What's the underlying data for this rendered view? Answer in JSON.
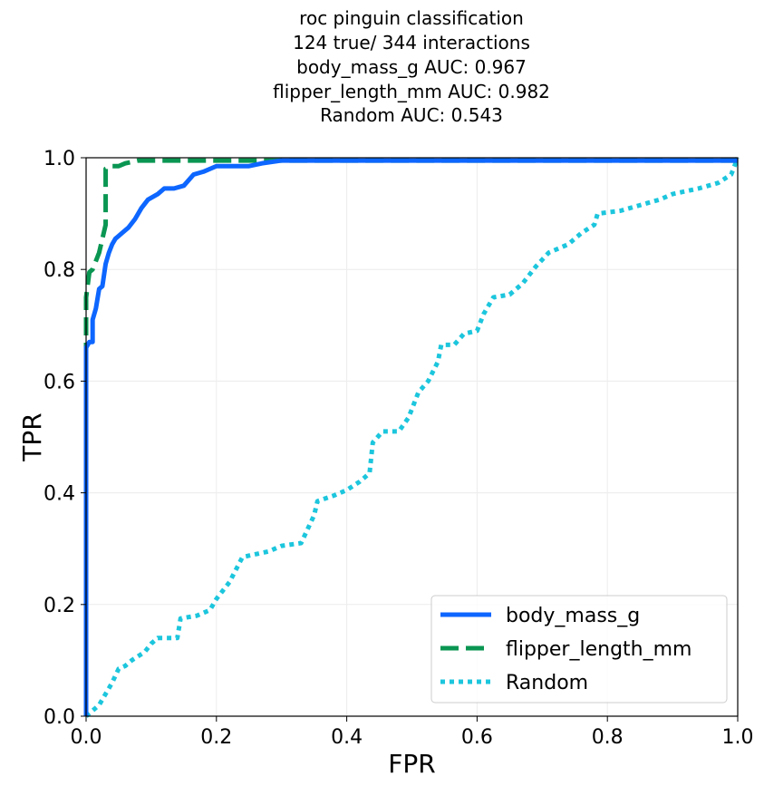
{
  "chart_data": {
    "type": "line",
    "title_lines": [
      "roc pinguin classification",
      "124 true/ 344 interactions",
      "body_mass_g AUC: 0.967",
      "flipper_length_mm AUC: 0.982",
      "Random AUC: 0.543"
    ],
    "xlabel": "FPR",
    "ylabel": "TPR",
    "xlim": [
      0,
      1
    ],
    "ylim": [
      0,
      1
    ],
    "xticks": [
      "0.0",
      "0.2",
      "0.4",
      "0.6",
      "0.8",
      "1.0"
    ],
    "yticks": [
      "0.0",
      "0.2",
      "0.4",
      "0.6",
      "0.8",
      "1.0"
    ],
    "grid": true,
    "legend_position": "lower-right",
    "series": [
      {
        "name": "body_mass_g",
        "color": "#0d66ff",
        "style": "solid",
        "points": [
          [
            0,
            0
          ],
          [
            0,
            0.66
          ],
          [
            0.005,
            0.67
          ],
          [
            0.01,
            0.67
          ],
          [
            0.01,
            0.71
          ],
          [
            0.015,
            0.73
          ],
          [
            0.02,
            0.765
          ],
          [
            0.025,
            0.77
          ],
          [
            0.03,
            0.81
          ],
          [
            0.035,
            0.83
          ],
          [
            0.04,
            0.845
          ],
          [
            0.045,
            0.855
          ],
          [
            0.05,
            0.86
          ],
          [
            0.055,
            0.865
          ],
          [
            0.065,
            0.875
          ],
          [
            0.075,
            0.89
          ],
          [
            0.085,
            0.91
          ],
          [
            0.095,
            0.925
          ],
          [
            0.11,
            0.935
          ],
          [
            0.12,
            0.945
          ],
          [
            0.135,
            0.945
          ],
          [
            0.15,
            0.95
          ],
          [
            0.165,
            0.97
          ],
          [
            0.18,
            0.975
          ],
          [
            0.2,
            0.985
          ],
          [
            0.25,
            0.985
          ],
          [
            0.27,
            0.99
          ],
          [
            0.3,
            0.995
          ],
          [
            0.5,
            0.995
          ],
          [
            1.0,
            0.995
          ]
        ]
      },
      {
        "name": "flipper_length_mm",
        "color": "#0a9652",
        "style": "dashed",
        "points": [
          [
            0,
            0
          ],
          [
            0,
            0.75
          ],
          [
            0.005,
            0.795
          ],
          [
            0.01,
            0.8
          ],
          [
            0.02,
            0.83
          ],
          [
            0.025,
            0.855
          ],
          [
            0.03,
            0.88
          ],
          [
            0.03,
            0.98
          ],
          [
            0.04,
            0.985
          ],
          [
            0.05,
            0.985
          ],
          [
            0.06,
            0.99
          ],
          [
            0.08,
            0.995
          ],
          [
            0.3,
            0.995
          ],
          [
            1.0,
            0.995
          ]
        ]
      },
      {
        "name": "Random",
        "color": "#1cc6dd",
        "style": "dotted",
        "points": [
          [
            0,
            0
          ],
          [
            0.01,
            0.01
          ],
          [
            0.02,
            0.02
          ],
          [
            0.03,
            0.04
          ],
          [
            0.04,
            0.06
          ],
          [
            0.05,
            0.085
          ],
          [
            0.06,
            0.09
          ],
          [
            0.07,
            0.1
          ],
          [
            0.09,
            0.115
          ],
          [
            0.1,
            0.13
          ],
          [
            0.11,
            0.14
          ],
          [
            0.14,
            0.14
          ],
          [
            0.145,
            0.175
          ],
          [
            0.17,
            0.18
          ],
          [
            0.19,
            0.19
          ],
          [
            0.2,
            0.21
          ],
          [
            0.22,
            0.24
          ],
          [
            0.24,
            0.285
          ],
          [
            0.26,
            0.29
          ],
          [
            0.28,
            0.295
          ],
          [
            0.3,
            0.305
          ],
          [
            0.33,
            0.31
          ],
          [
            0.35,
            0.36
          ],
          [
            0.355,
            0.385
          ],
          [
            0.38,
            0.395
          ],
          [
            0.4,
            0.405
          ],
          [
            0.42,
            0.42
          ],
          [
            0.435,
            0.435
          ],
          [
            0.44,
            0.49
          ],
          [
            0.455,
            0.51
          ],
          [
            0.48,
            0.51
          ],
          [
            0.495,
            0.535
          ],
          [
            0.51,
            0.58
          ],
          [
            0.525,
            0.6
          ],
          [
            0.54,
            0.635
          ],
          [
            0.545,
            0.665
          ],
          [
            0.565,
            0.665
          ],
          [
            0.58,
            0.685
          ],
          [
            0.6,
            0.69
          ],
          [
            0.61,
            0.72
          ],
          [
            0.625,
            0.75
          ],
          [
            0.65,
            0.755
          ],
          [
            0.67,
            0.775
          ],
          [
            0.69,
            0.805
          ],
          [
            0.71,
            0.83
          ],
          [
            0.74,
            0.845
          ],
          [
            0.76,
            0.865
          ],
          [
            0.78,
            0.88
          ],
          [
            0.785,
            0.9
          ],
          [
            0.82,
            0.905
          ],
          [
            0.85,
            0.915
          ],
          [
            0.88,
            0.925
          ],
          [
            0.9,
            0.935
          ],
          [
            0.94,
            0.945
          ],
          [
            0.97,
            0.955
          ],
          [
            0.99,
            0.97
          ],
          [
            1.0,
            1.0
          ]
        ]
      }
    ]
  }
}
